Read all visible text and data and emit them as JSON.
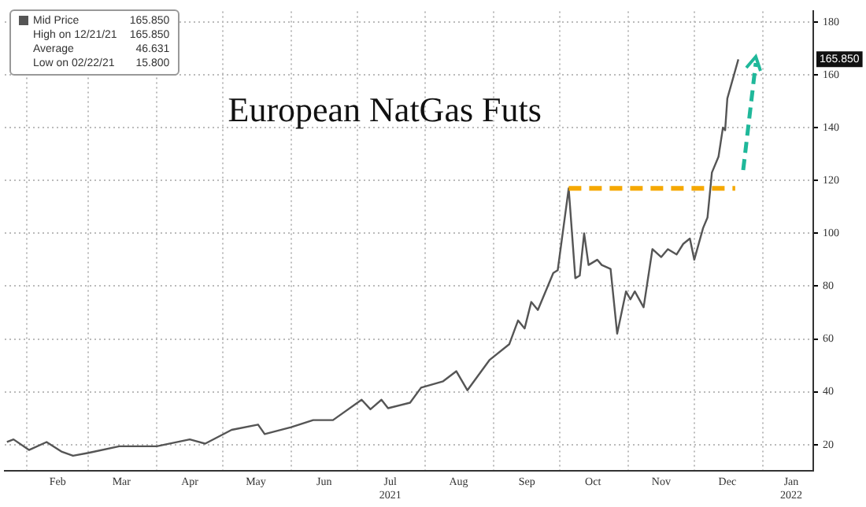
{
  "chart_data": {
    "type": "line",
    "title": "European NatGas Futs",
    "x": [
      "2021-01-23",
      "2021-01-26",
      "2021-02-02",
      "2021-02-10",
      "2021-02-17",
      "2021-02-22",
      "2021-03-01",
      "2021-03-15",
      "2021-04-01",
      "2021-04-16",
      "2021-04-23",
      "2021-05-05",
      "2021-05-17",
      "2021-05-20",
      "2021-06-01",
      "2021-06-11",
      "2021-06-20",
      "2021-07-03",
      "2021-07-07",
      "2021-07-12",
      "2021-07-15",
      "2021-07-25",
      "2021-07-30",
      "2021-08-09",
      "2021-08-15",
      "2021-08-20",
      "2021-08-30",
      "2021-09-08",
      "2021-09-12",
      "2021-09-15",
      "2021-09-18",
      "2021-09-21",
      "2021-09-28",
      "2021-09-30",
      "2021-10-05",
      "2021-10-08",
      "2021-10-10",
      "2021-10-12",
      "2021-10-14",
      "2021-10-18",
      "2021-10-20",
      "2021-10-24",
      "2021-10-27",
      "2021-10-31",
      "2021-11-02",
      "2021-11-04",
      "2021-11-08",
      "2021-11-12",
      "2021-11-16",
      "2021-11-19",
      "2021-11-23",
      "2021-11-26",
      "2021-11-29",
      "2021-12-01",
      "2021-12-05",
      "2021-12-07",
      "2021-12-09",
      "2021-12-12",
      "2021-12-14",
      "2021-12-15",
      "2021-12-16",
      "2021-12-21"
    ],
    "series": [
      {
        "name": "Mid Price",
        "color": "#555555",
        "values": [
          21,
          22,
          18,
          21,
          17.3,
          15.8,
          16.9,
          19.4,
          19.4,
          22,
          20.4,
          25.6,
          27.6,
          24,
          26.6,
          29.3,
          29.3,
          37,
          33.4,
          37,
          33.8,
          35.9,
          41.6,
          44,
          47.8,
          40.6,
          52,
          58,
          67,
          64,
          74,
          71,
          85,
          86,
          117,
          83,
          84,
          100,
          88,
          90,
          88,
          86.5,
          62,
          78,
          75,
          78,
          72,
          94,
          91,
          94,
          92,
          96,
          98,
          90,
          102,
          106,
          123,
          129,
          140,
          139,
          151,
          165.85
        ]
      }
    ],
    "xlim": [
      "2021-01-22",
      "2022-01-24"
    ],
    "xticks": [
      {
        "value": "2021-02-01",
        "label": null
      },
      {
        "value": "2021-02-15",
        "label": "Feb"
      },
      {
        "value": "2021-03-01",
        "label": null
      },
      {
        "value": "2021-03-16",
        "label": "Mar"
      },
      {
        "value": "2021-04-01",
        "label": null
      },
      {
        "value": "2021-04-16",
        "label": "Apr"
      },
      {
        "value": "2021-05-01",
        "label": null
      },
      {
        "value": "2021-05-16",
        "label": "May"
      },
      {
        "value": "2021-06-01",
        "label": null
      },
      {
        "value": "2021-06-16",
        "label": "Jun"
      },
      {
        "value": "2021-07-01",
        "label": null
      },
      {
        "value": "2021-07-16",
        "label": "Jul\n2021"
      },
      {
        "value": "2021-08-01",
        "label": null
      },
      {
        "value": "2021-08-16",
        "label": "Aug"
      },
      {
        "value": "2021-09-01",
        "label": null
      },
      {
        "value": "2021-09-16",
        "label": "Sep"
      },
      {
        "value": "2021-10-01",
        "label": null
      },
      {
        "value": "2021-10-16",
        "label": "Oct"
      },
      {
        "value": "2021-11-01",
        "label": null
      },
      {
        "value": "2021-11-16",
        "label": "Nov"
      },
      {
        "value": "2021-12-01",
        "label": null
      },
      {
        "value": "2021-12-16",
        "label": "Dec"
      },
      {
        "value": "2022-01-01",
        "label": null
      },
      {
        "value": "2022-01-14",
        "label": "Jan\n2022"
      }
    ],
    "ylim": [
      10,
      184
    ],
    "yticks": [
      20,
      40,
      60,
      80,
      100,
      120,
      140,
      160,
      180
    ],
    "grid": true,
    "legend": "top left",
    "marker": "none",
    "line_style": "solid",
    "annotations": [
      "165.850",
      "High on 12/21/21 165.850",
      "Average 46.631",
      "Low on 02/22/21 15.800",
      {
        "text": "165.850",
        "y": 165.85
      }
    ],
    "ref_lines": [
      {
        "axis": "y",
        "value": 117,
        "color": "#f5a800",
        "line_style": "dashed"
      }
    ]
  }
}
